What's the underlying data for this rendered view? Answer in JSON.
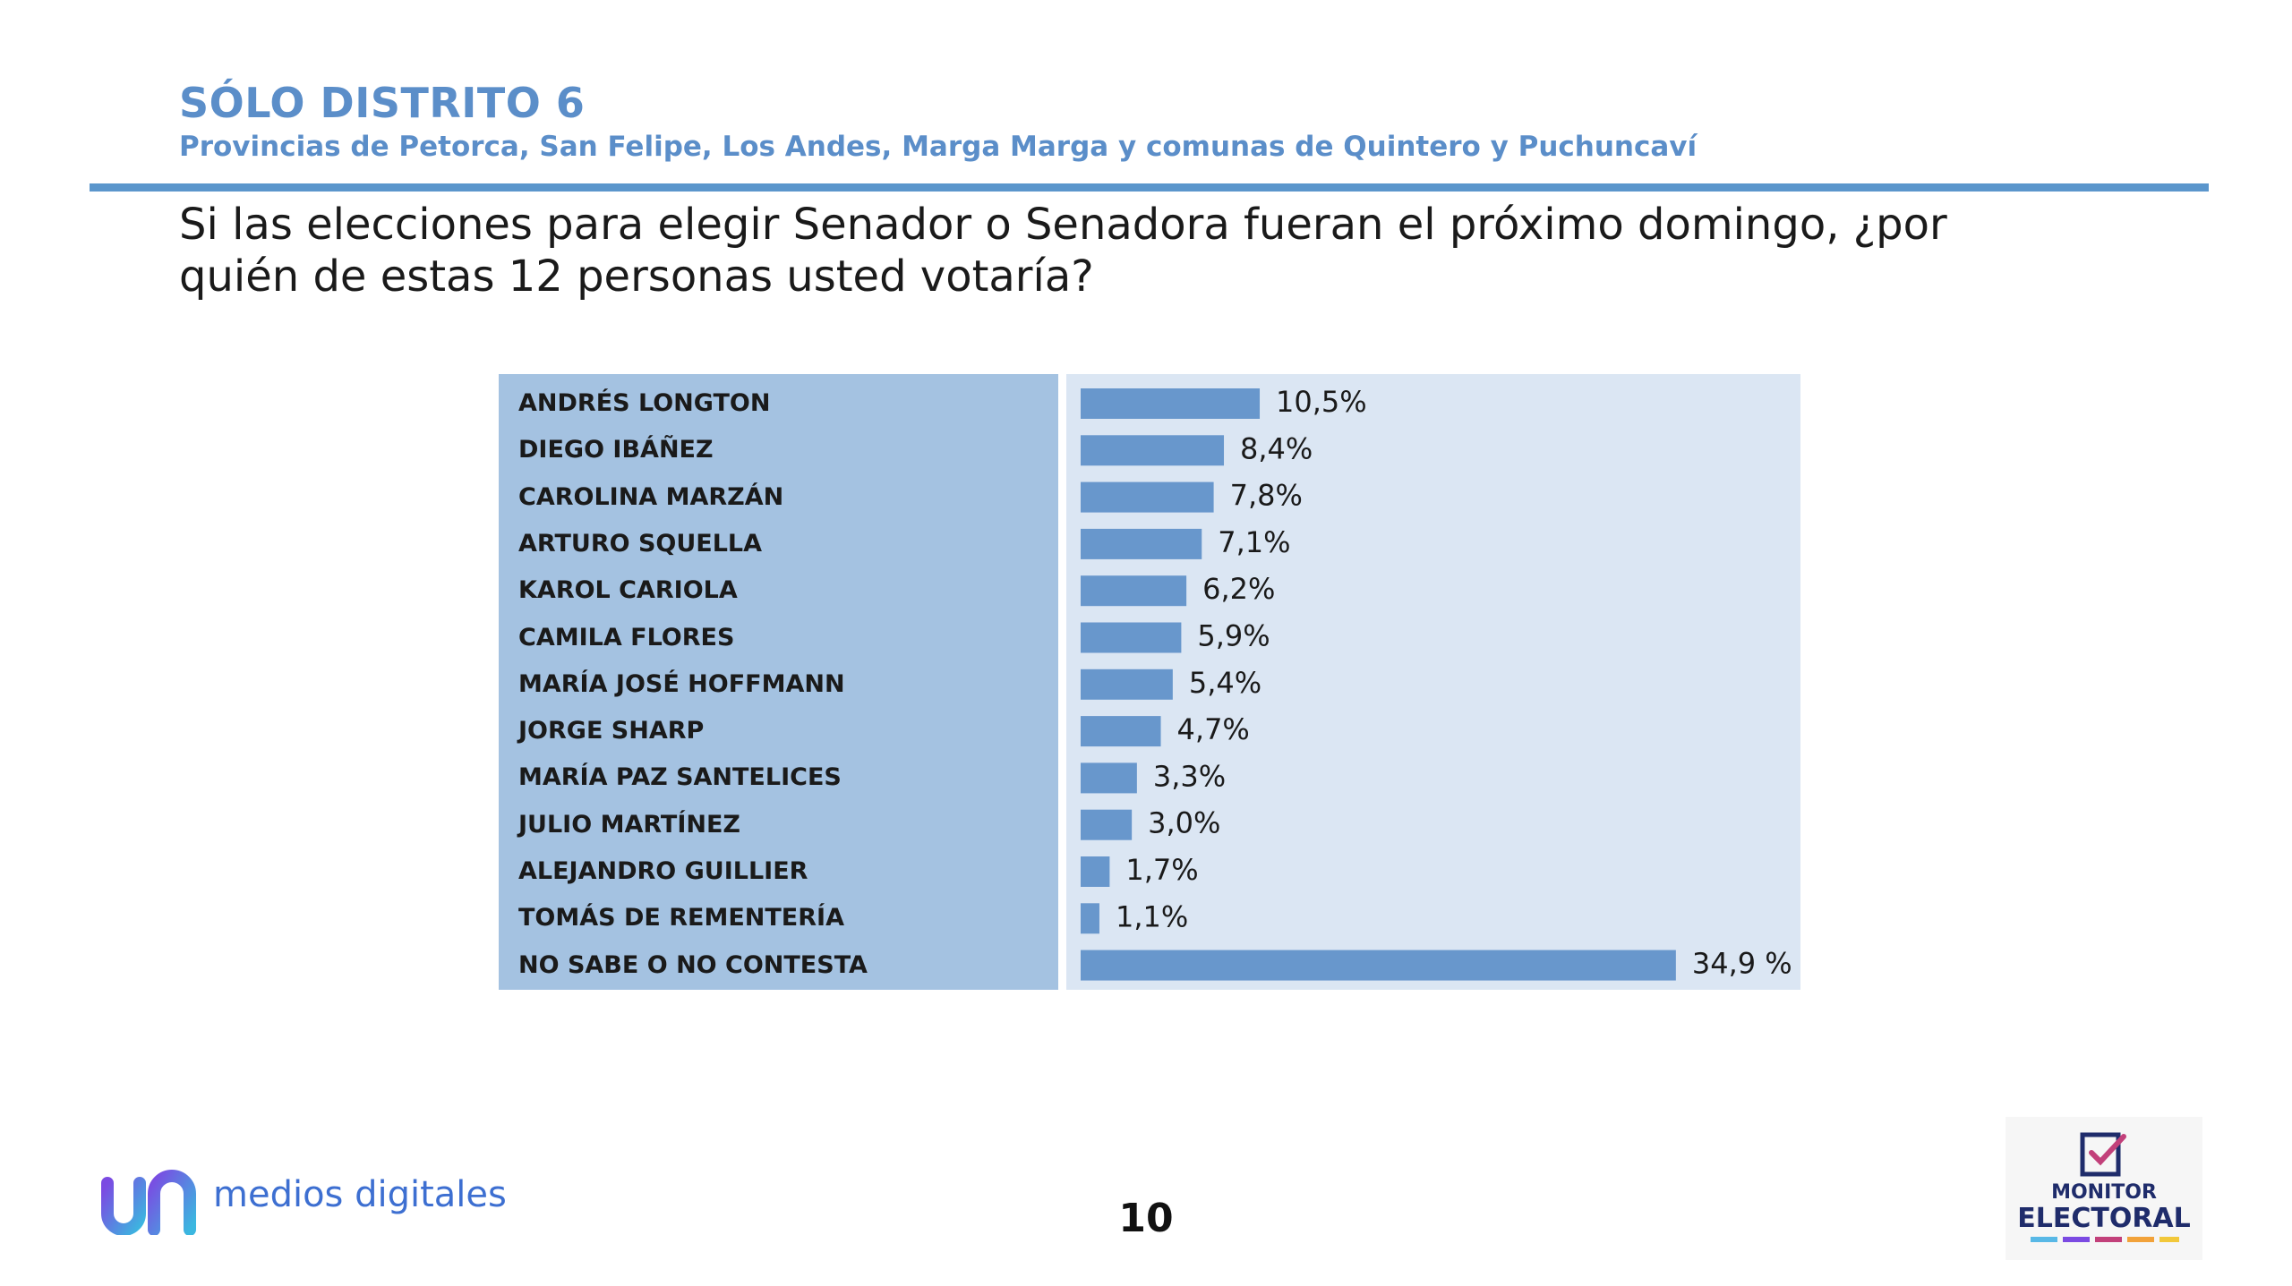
{
  "header": {
    "title": "SÓLO DISTRITO 6",
    "subtitle": "Provincias de Petorca, San Felipe, Los Andes, Marga Marga y comunas de Quintero y Puchuncaví"
  },
  "question": "Si las elecciones para elegir Senador o Senadora fueran el próximo domingo, ¿por quién de estas 12 personas usted votaría?",
  "colors": {
    "accent": "#5b8ec9",
    "bar": "#6897cc",
    "label_panel": "#a4c2e1",
    "bar_panel": "#dbe6f3"
  },
  "chart_data": {
    "type": "bar",
    "orientation": "horizontal",
    "categories": [
      "ANDRÉS LONGTON",
      "DIEGO IBÁÑEZ",
      "CAROLINA MARZÁN",
      "ARTURO SQUELLA",
      "KAROL CARIOLA",
      "CAMILA FLORES",
      "MARÍA JOSÉ HOFFMANN",
      "JORGE SHARP",
      "MARÍA PAZ SANTELICES",
      "JULIO MARTÍNEZ",
      "ALEJANDRO GUILLIER",
      "TOMÁS DE REMENTERÍA",
      "NO SABE O NO CONTESTA"
    ],
    "values": [
      10.5,
      8.4,
      7.8,
      7.1,
      6.2,
      5.9,
      5.4,
      4.7,
      3.3,
      3.0,
      1.7,
      1.1,
      34.9
    ],
    "value_labels": [
      "10,5%",
      "8,4%",
      "7,8%",
      "7,1%",
      "6,2%",
      "5,9%",
      "5,4%",
      "4,7%",
      "3,3%",
      "3,0%",
      "1,7%",
      "1,1%",
      "34,9 %"
    ],
    "unit": "%",
    "xlim": [
      0,
      40
    ],
    "grid": false,
    "legend": "none"
  },
  "footer": {
    "left_logo_text": "medios digitales",
    "page_number": "10",
    "right_logo_line1": "MONITOR",
    "right_logo_line2": "ELECTORAL"
  }
}
